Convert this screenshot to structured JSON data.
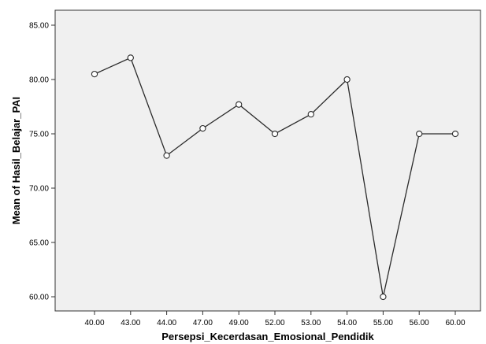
{
  "chart_data": {
    "type": "line",
    "title": "",
    "xlabel": "Persepsi_Kecerdasan_Emosional_Pendidik",
    "ylabel": "Mean of Hasil_Belajar_PAI",
    "categories": [
      "40.00",
      "43.00",
      "44.00",
      "47.00",
      "49.00",
      "52.00",
      "53.00",
      "54.00",
      "55.00",
      "56.00",
      "60.00"
    ],
    "series": [
      {
        "values": [
          80.5,
          82.0,
          73.0,
          75.5,
          77.7,
          75.0,
          76.8,
          80.0,
          60.0,
          75.0,
          75.0
        ]
      }
    ],
    "ylim": [
      59,
      86
    ],
    "yticks": [
      60,
      65,
      70,
      75,
      80,
      85
    ],
    "ytick_labels": [
      "60.00",
      "65.00",
      "70.00",
      "75.00",
      "80.00",
      "85.00"
    ],
    "grid": false,
    "legend": "none",
    "colors": {
      "plot_background": "#f0f0f0",
      "line": "#2b2b2b",
      "marker": "#2b2b2b"
    }
  }
}
